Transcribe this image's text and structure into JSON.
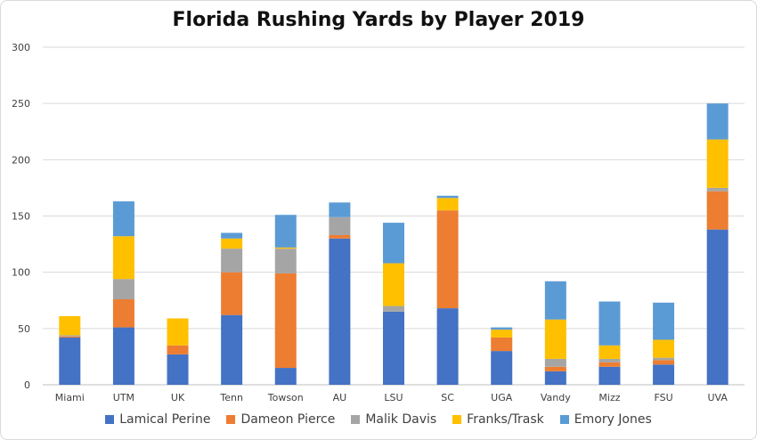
{
  "chart_data": {
    "type": "bar",
    "stacked": true,
    "title": "Florida Rushing Yards by Player 2019",
    "xlabel": "",
    "ylabel": "",
    "ylim": [
      0,
      300
    ],
    "yticks": [
      0,
      50,
      100,
      150,
      200,
      250,
      300
    ],
    "grid": true,
    "legend_position": "bottom",
    "categories": [
      "Miami",
      "UTM",
      "UK",
      "Tenn",
      "Towson",
      "AU",
      "LSU",
      "SC",
      "UGA",
      "Vandy",
      "Mizz",
      "FSU",
      "UVA"
    ],
    "series": [
      {
        "name": "Lamical Perine",
        "color": "#4472c4",
        "values": [
          42,
          51,
          27,
          62,
          15,
          130,
          65,
          68,
          30,
          12,
          16,
          18,
          138
        ]
      },
      {
        "name": "Dameon Pierce",
        "color": "#ed7d31",
        "values": [
          1,
          25,
          8,
          38,
          84,
          3,
          0,
          87,
          12,
          4,
          4,
          4,
          34
        ]
      },
      {
        "name": "Malik Davis",
        "color": "#a5a5a5",
        "values": [
          1,
          18,
          0,
          21,
          22,
          16,
          5,
          0,
          0,
          7,
          3,
          2,
          3
        ]
      },
      {
        "name": "Franks/Trask",
        "color": "#ffc000",
        "values": [
          17,
          38,
          24,
          9,
          1,
          0,
          38,
          11,
          7,
          35,
          12,
          16,
          43
        ]
      },
      {
        "name": "Emory Jones",
        "color": "#5b9bd5",
        "values": [
          0,
          31,
          0,
          5,
          29,
          13,
          36,
          2,
          2,
          34,
          39,
          33,
          32
        ]
      }
    ]
  }
}
